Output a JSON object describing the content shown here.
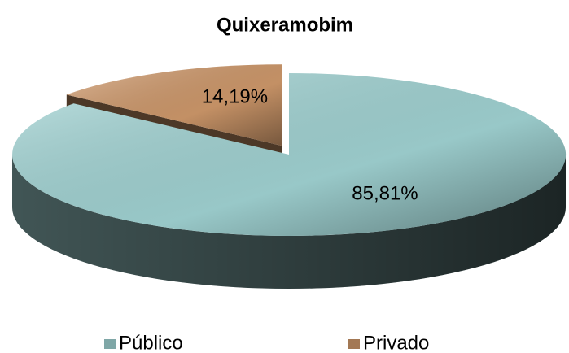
{
  "chart_data": {
    "type": "pie",
    "title": "Quixeramobim",
    "categories": [
      "Público",
      "Privado"
    ],
    "values": [
      85.81,
      14.19
    ],
    "value_labels": [
      "85,81%",
      "14,19%"
    ],
    "colors": [
      "#a9dede",
      "#d9a070"
    ],
    "explode": [
      false,
      true
    ],
    "legend": "bottom"
  }
}
